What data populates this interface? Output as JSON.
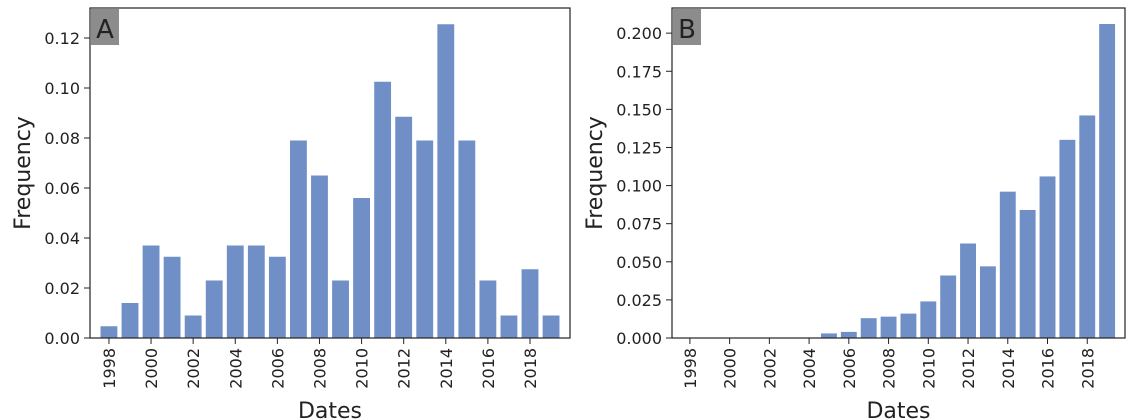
{
  "figure": {
    "colors": {
      "bar": "#6f8fc6",
      "axis": "#222222",
      "label_box": "#8c8c8c"
    }
  },
  "chart_data": [
    {
      "type": "bar",
      "panel_label": "A",
      "categories": [
        1998,
        1999,
        2000,
        2001,
        2002,
        2003,
        2004,
        2005,
        2006,
        2007,
        2008,
        2009,
        2010,
        2011,
        2012,
        2013,
        2014,
        2015,
        2016,
        2017,
        2018,
        2019
      ],
      "values": [
        0.0047,
        0.014,
        0.037,
        0.0325,
        0.009,
        0.023,
        0.037,
        0.037,
        0.0325,
        0.079,
        0.065,
        0.023,
        0.056,
        0.1025,
        0.0885,
        0.079,
        0.1255,
        0.079,
        0.023,
        0.009,
        0.0275,
        0.009
      ],
      "xlabel": "Dates",
      "ylabel": "Frequency",
      "xticks": [
        1998,
        2000,
        2002,
        2004,
        2006,
        2008,
        2010,
        2012,
        2014,
        2016,
        2018
      ],
      "yticks": [
        0.0,
        0.02,
        0.04,
        0.06,
        0.08,
        0.1,
        0.12
      ],
      "ytick_labels": [
        "0.00",
        "0.02",
        "0.04",
        "0.06",
        "0.08",
        "0.10",
        "0.12"
      ],
      "ylim": [
        0,
        0.132
      ],
      "grid": false,
      "legend": "none"
    },
    {
      "type": "bar",
      "panel_label": "B",
      "categories": [
        1998,
        1999,
        2000,
        2001,
        2002,
        2003,
        2004,
        2005,
        2006,
        2007,
        2008,
        2009,
        2010,
        2011,
        2012,
        2013,
        2014,
        2015,
        2016,
        2017,
        2018,
        2019
      ],
      "values": [
        0,
        0,
        0,
        0,
        0,
        0,
        0,
        0.003,
        0.004,
        0.013,
        0.014,
        0.016,
        0.024,
        0.041,
        0.062,
        0.047,
        0.096,
        0.084,
        0.106,
        0.13,
        0.146,
        0.206
      ],
      "xlabel": "Dates",
      "ylabel": "Frequency",
      "xticks": [
        1998,
        2000,
        2002,
        2004,
        2006,
        2008,
        2010,
        2012,
        2014,
        2016,
        2018
      ],
      "yticks": [
        0.0,
        0.025,
        0.05,
        0.075,
        0.1,
        0.125,
        0.15,
        0.175,
        0.2
      ],
      "ytick_labels": [
        "0.000",
        "0.025",
        "0.050",
        "0.075",
        "0.100",
        "0.125",
        "0.150",
        "0.175",
        "0.200"
      ],
      "ylim": [
        0,
        0.2165
      ],
      "grid": false,
      "legend": "none"
    }
  ]
}
